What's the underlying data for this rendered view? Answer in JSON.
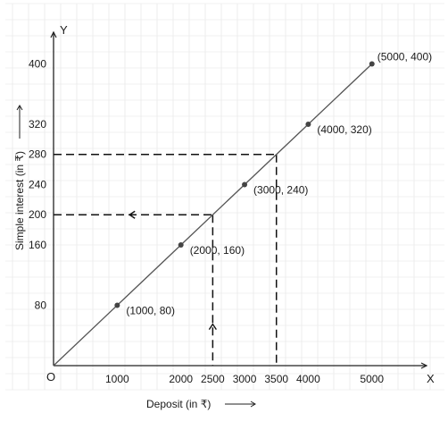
{
  "chart_data": {
    "type": "line",
    "title": "",
    "xlabel": "Deposit (in ₹)",
    "ylabel": "Simple interest (in ₹)",
    "x_axis_letter": "X",
    "y_axis_letter": "Y",
    "origin_label": "O",
    "xlim": [
      0,
      5500
    ],
    "ylim": [
      0,
      440
    ],
    "grid": true,
    "x_ticks": [
      1000,
      2000,
      2500,
      3000,
      3500,
      4000,
      5000
    ],
    "y_ticks": [
      80,
      160,
      200,
      240,
      280,
      320,
      400
    ],
    "series": [
      {
        "points": [
          {
            "x": 1000,
            "y": 80,
            "label": "(1000, 80)"
          },
          {
            "x": 2000,
            "y": 160,
            "label": "(2000, 160)"
          },
          {
            "x": 3000,
            "y": 240,
            "label": "(3000, 240)"
          },
          {
            "x": 4000,
            "y": 320,
            "label": "(4000, 320)"
          },
          {
            "x": 5000,
            "y": 400,
            "label": "(5000, 400)"
          }
        ]
      }
    ],
    "reference_lines": [
      {
        "x": 2500,
        "y": 200,
        "arrows": true
      },
      {
        "x": 3500,
        "y": 280,
        "arrows": false
      }
    ],
    "colors": {
      "line": "#555555",
      "point": "#444444",
      "axis": "#222222",
      "grid": "#e3e3e3",
      "dashed": "#111111"
    }
  }
}
